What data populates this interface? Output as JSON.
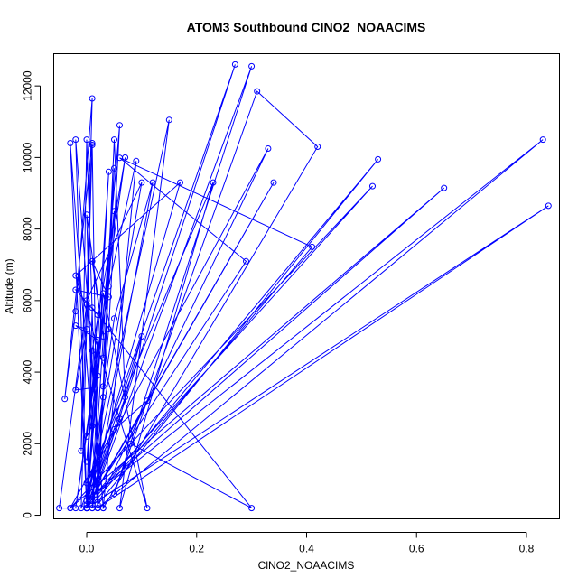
{
  "chart_data": {
    "type": "line",
    "title": "ATOM3 Southbound ClNO2_NOAACIMS",
    "xlabel": "ClNO2_NOAACIMS",
    "ylabel": "Altitude (m)",
    "xlim": [
      -0.06,
      0.86
    ],
    "ylim": [
      -100,
      12900
    ],
    "x_ticks": [
      0.0,
      0.2,
      0.4,
      0.6,
      0.8
    ],
    "x_tick_labels": [
      "0.0",
      "0.2",
      "0.4",
      "0.6",
      "0.8"
    ],
    "y_ticks": [
      0,
      2000,
      4000,
      6000,
      8000,
      10000,
      12000
    ],
    "y_tick_labels": [
      "0",
      "2000",
      "4000",
      "6000",
      "8000",
      "10000",
      "12000"
    ],
    "grid": false,
    "legend": "none",
    "series": [
      {
        "color": "#0000ff",
        "markers": "open-circle",
        "points": [
          [
            0.0,
            200
          ],
          [
            -0.03,
            10400
          ],
          [
            0.02,
            200
          ],
          [
            0.01,
            10350
          ],
          [
            -0.01,
            200
          ],
          [
            0.27,
            12600
          ],
          [
            0.01,
            400
          ],
          [
            0.3,
            12550
          ],
          [
            0.05,
            600
          ],
          [
            0.31,
            11850
          ],
          [
            0.42,
            10300
          ],
          [
            0.03,
            200
          ],
          [
            -0.02,
            10500
          ],
          [
            0.0,
            300
          ],
          [
            0.15,
            11050
          ],
          [
            0.06,
            200
          ],
          [
            0.23,
            9300
          ],
          [
            0.0,
            900
          ],
          [
            0.33,
            10250
          ],
          [
            0.02,
            300
          ],
          [
            0.53,
            9950
          ],
          [
            0.0,
            200
          ],
          [
            0.34,
            9300
          ],
          [
            0.01,
            500
          ],
          [
            0.52,
            9200
          ],
          [
            -0.03,
            200
          ],
          [
            0.65,
            9150
          ],
          [
            0.0,
            400
          ],
          [
            0.83,
            10500
          ],
          [
            0.02,
            200
          ],
          [
            0.84,
            8650
          ],
          [
            0.01,
            300
          ],
          [
            0.41,
            7500
          ],
          [
            0.06,
            9990
          ],
          [
            0.29,
            7100
          ],
          [
            0.0,
            300
          ],
          [
            0.17,
            9300
          ],
          [
            -0.02,
            6700
          ],
          [
            0.11,
            200
          ],
          [
            0.03,
            6200
          ],
          [
            0.0,
            200
          ],
          [
            0.06,
            10900
          ],
          [
            0.04,
            5200
          ],
          [
            0.01,
            200
          ],
          [
            0.12,
            9300
          ],
          [
            0.05,
            5500
          ],
          [
            0.0,
            200
          ],
          [
            0.1,
            9300
          ],
          [
            0.0,
            6000
          ],
          [
            0.03,
            200
          ],
          [
            0.09,
            9900
          ],
          [
            0.04,
            6400
          ],
          [
            -0.02,
            200
          ],
          [
            0.07,
            10000
          ],
          [
            0.01,
            4600
          ],
          [
            0.0,
            200
          ],
          [
            0.04,
            9600
          ],
          [
            0.02,
            3900
          ],
          [
            0.01,
            200
          ],
          [
            0.05,
            9700
          ],
          [
            0.03,
            3300
          ],
          [
            0.02,
            200
          ],
          [
            0.05,
            10500
          ],
          [
            0.07,
            3300
          ],
          [
            0.0,
            200
          ],
          [
            0.1,
            5000
          ],
          [
            0.06,
            2700
          ],
          [
            0.0,
            200
          ],
          [
            0.11,
            3200
          ],
          [
            0.05,
            2400
          ],
          [
            -0.03,
            200
          ],
          [
            0.08,
            2000
          ],
          [
            0.3,
            200
          ],
          [
            0.01,
            5800
          ],
          [
            0.0,
            200
          ],
          [
            -0.05,
            200
          ],
          [
            0.0,
            5900
          ],
          [
            0.01,
            11650
          ],
          [
            -0.02,
            5700
          ],
          [
            -0.04,
            3250
          ],
          [
            0.01,
            10400
          ],
          [
            -0.01,
            1800
          ],
          [
            0.0,
            10500
          ],
          [
            0.02,
            900
          ],
          [
            0.03,
            3600
          ],
          [
            -0.02,
            3500
          ],
          [
            0.0,
            5200
          ],
          [
            -0.02,
            5300
          ],
          [
            0.02,
            4900
          ],
          [
            0.0,
            2200
          ],
          [
            0.01,
            2500
          ],
          [
            0.0,
            8400
          ],
          [
            0.03,
            5000
          ],
          [
            0.01,
            7100
          ],
          [
            0.04,
            6100
          ],
          [
            -0.02,
            6300
          ],
          [
            0.02,
            5600
          ],
          [
            0.0,
            1500
          ],
          [
            0.05,
            8500
          ],
          [
            0.03,
            4400
          ]
        ]
      }
    ]
  }
}
